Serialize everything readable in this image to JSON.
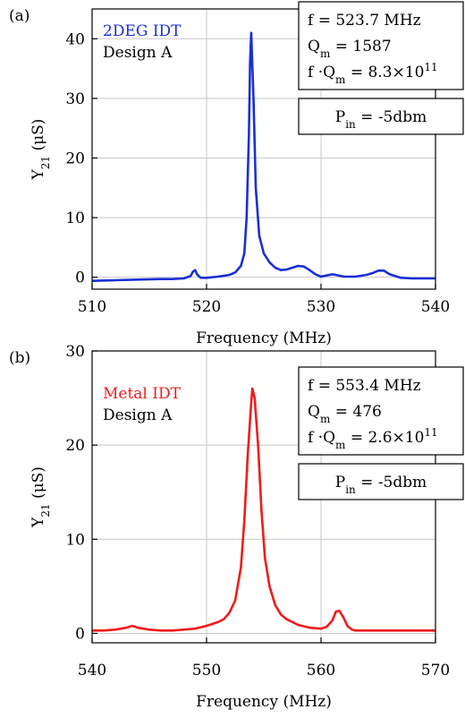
{
  "chart_data": [
    {
      "type": "line",
      "panel_label": "(a)",
      "xlabel": "Frequency (MHz)",
      "ylabel": "Y21 (μS)",
      "xlim": [
        510,
        540
      ],
      "ylim": [
        -2,
        45
      ],
      "xticks": [
        510,
        520,
        530,
        540
      ],
      "yticks": [
        0,
        10,
        20,
        30,
        40
      ],
      "grid": true,
      "legend": [
        "2DEG IDT",
        "Design A"
      ],
      "legend_colors": [
        "#1a2fd6",
        "#000000"
      ],
      "info": [
        "f = 523.7 MHz",
        "Qm = 1587",
        "f ·Qm = 8.3×1011"
      ],
      "power": "Pin = -5dbm",
      "series": [
        {
          "name": "2DEG IDT",
          "color": "#1a2fd6",
          "x": [
            510,
            512,
            514,
            516,
            517,
            518,
            518.6,
            518.8,
            519.0,
            519.2,
            519.5,
            520,
            521,
            522,
            522.5,
            523.0,
            523.3,
            523.5,
            523.7,
            523.8,
            523.9,
            524.1,
            524.3,
            524.6,
            525,
            525.5,
            526,
            526.5,
            527,
            527.5,
            528,
            528.5,
            529,
            529.5,
            530,
            530.5,
            531,
            532,
            533,
            534,
            534.5,
            535,
            535.5,
            536,
            537,
            538,
            539,
            540
          ],
          "y": [
            -0.6,
            -0.5,
            -0.4,
            -0.3,
            -0.3,
            -0.2,
            0.2,
            0.9,
            1.2,
            0.4,
            -0.1,
            -0.1,
            0.1,
            0.4,
            0.8,
            1.9,
            4.0,
            10.0,
            24.0,
            36.0,
            41.0,
            30.0,
            15.0,
            7.0,
            4.0,
            2.5,
            1.6,
            1.2,
            1.3,
            1.6,
            1.9,
            1.8,
            1.2,
            0.5,
            0.1,
            0.3,
            0.5,
            0.1,
            0.1,
            0.4,
            0.7,
            1.1,
            1.1,
            0.5,
            -0.1,
            -0.2,
            -0.2,
            -0.2
          ]
        }
      ]
    },
    {
      "type": "line",
      "panel_label": "(b)",
      "xlabel": "Frequency (MHz)",
      "ylabel": "Y21 (μS)",
      "xlim": [
        540,
        570
      ],
      "ylim": [
        -1,
        30
      ],
      "xticks": [
        540,
        550,
        560,
        570
      ],
      "yticks": [
        0,
        10,
        20,
        30
      ],
      "grid": true,
      "legend": [
        "Metal IDT",
        "Design A"
      ],
      "legend_colors": [
        "#ee1c1c",
        "#000000"
      ],
      "info": [
        "f = 553.4 MHz",
        "Qm = 476",
        "f ·Qm = 2.6×1011"
      ],
      "power": "Pin = -5dbm",
      "series": [
        {
          "name": "Metal IDT",
          "color": "#ee1c1c",
          "x": [
            540,
            541,
            542,
            543,
            543.5,
            544,
            545,
            546,
            547,
            548,
            549,
            550,
            550.5,
            551,
            551.5,
            552,
            552.5,
            553,
            553.3,
            553.6,
            553.9,
            554.0,
            554.2,
            554.5,
            554.8,
            555.1,
            555.5,
            556,
            556.5,
            557,
            558,
            559,
            560,
            560.5,
            561,
            561.3,
            561.6,
            562,
            562.3,
            562.7,
            563,
            564,
            565,
            566,
            567,
            568,
            569,
            570
          ],
          "y": [
            0.3,
            0.3,
            0.4,
            0.6,
            0.8,
            0.6,
            0.4,
            0.3,
            0.3,
            0.4,
            0.5,
            0.8,
            1.0,
            1.2,
            1.5,
            2.2,
            3.5,
            7.0,
            12.0,
            19.0,
            24.5,
            26.0,
            25.0,
            20.0,
            13.0,
            8.0,
            5.0,
            3.0,
            2.0,
            1.5,
            0.9,
            0.6,
            0.5,
            0.7,
            1.4,
            2.3,
            2.4,
            1.6,
            0.8,
            0.4,
            0.3,
            0.3,
            0.3,
            0.3,
            0.3,
            0.3,
            0.3,
            0.3
          ]
        }
      ]
    }
  ]
}
